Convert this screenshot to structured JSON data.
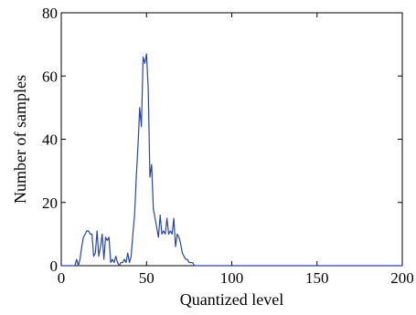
{
  "chart_data": {
    "type": "line",
    "title": "",
    "xlabel": "Quantized level",
    "ylabel": "Number of samples",
    "xlim": [
      0,
      200
    ],
    "ylim": [
      0,
      80
    ],
    "x_ticks": [
      0,
      50,
      100,
      150,
      200
    ],
    "y_ticks": [
      0,
      20,
      40,
      60,
      80
    ],
    "grid": false,
    "legend": "none",
    "series": [
      {
        "color": "#2a44a8",
        "x": [
          0,
          8,
          9,
          10,
          11,
          12,
          13,
          14,
          15,
          16,
          17,
          18,
          19,
          20,
          21,
          22,
          23,
          24,
          25,
          26,
          27,
          28,
          29,
          30,
          31,
          32,
          33,
          34,
          35,
          36,
          37,
          38,
          39,
          40,
          41,
          42,
          43,
          44,
          45,
          46,
          47,
          48,
          49,
          50,
          51,
          52,
          53,
          54,
          55,
          56,
          57,
          58,
          59,
          60,
          61,
          62,
          63,
          64,
          65,
          66,
          67,
          68,
          69,
          70,
          71,
          72,
          73,
          74,
          75,
          76,
          77,
          78,
          79,
          80,
          200
        ],
        "y": [
          0,
          0,
          2,
          0,
          2,
          6,
          9,
          10,
          11,
          11,
          10,
          10,
          3,
          4,
          11,
          3,
          6,
          10,
          2,
          9,
          8,
          9,
          1,
          2,
          1,
          3,
          1,
          0,
          1,
          1,
          2,
          1,
          4,
          1,
          3,
          10,
          16,
          28,
          38,
          50,
          44,
          66,
          64,
          67,
          56,
          28,
          32,
          18,
          15,
          12,
          9,
          16,
          10,
          11,
          10,
          15,
          10,
          11,
          10,
          15,
          6,
          10,
          9,
          7,
          4,
          3,
          2,
          2,
          1,
          1,
          1,
          0,
          0,
          0,
          0
        ]
      }
    ]
  }
}
